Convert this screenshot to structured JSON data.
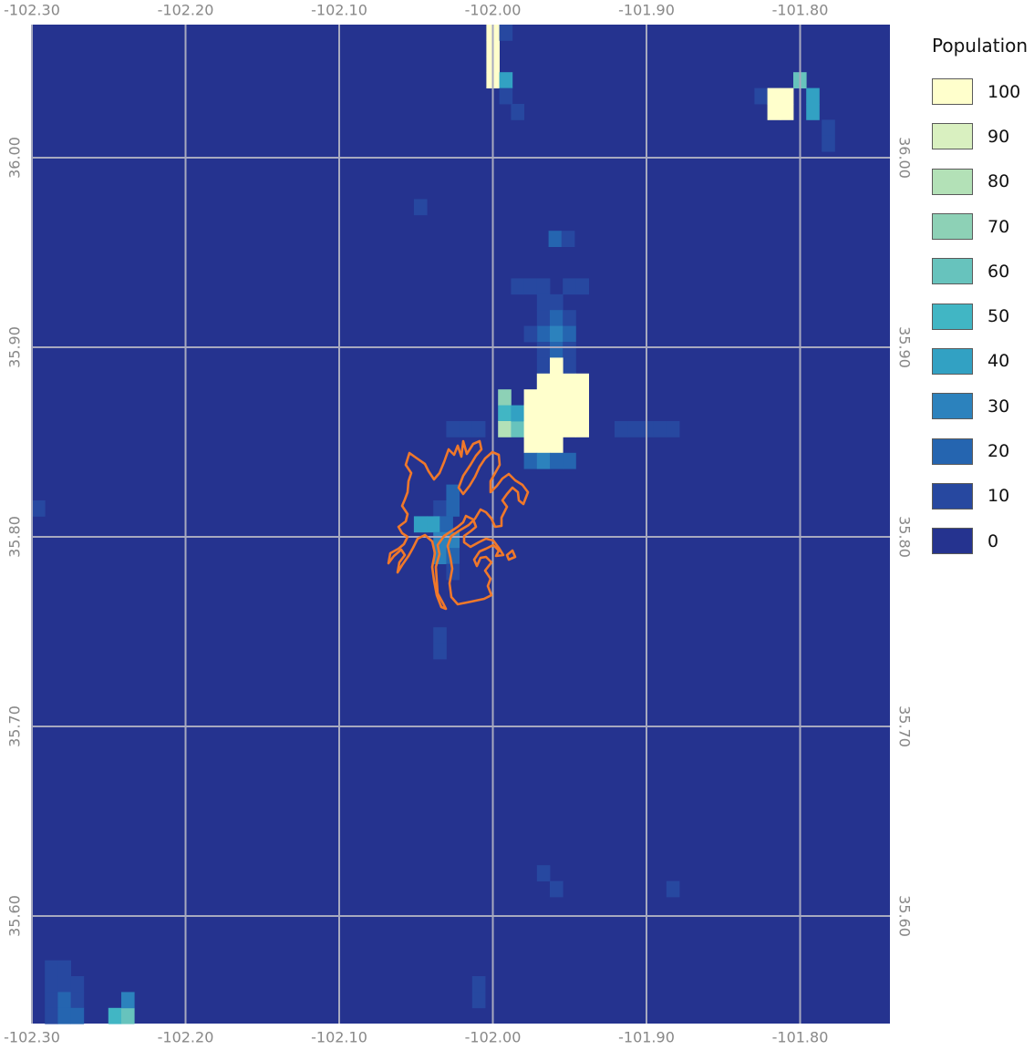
{
  "map": {
    "background_color": "#25338f",
    "grid_color": "#a7a9bf",
    "boundary_color": "#f0782a",
    "x_ticks": [
      "-102.30",
      "-102.20",
      "-102.10",
      "-102.00",
      "-101.90",
      "-101.80"
    ],
    "y_ticks": [
      "36.00",
      "35.90",
      "35.80",
      "35.70",
      "35.60"
    ]
  },
  "legend": {
    "title": "Population",
    "items": [
      {
        "label": "100",
        "color": "#ffffcc"
      },
      {
        "label": "90",
        "color": "#d9f0c0"
      },
      {
        "label": "80",
        "color": "#b3e1b7"
      },
      {
        "label": "70",
        "color": "#8dd1b6"
      },
      {
        "label": "60",
        "color": "#67c3bd"
      },
      {
        "label": "50",
        "color": "#41b6c4"
      },
      {
        "label": "40",
        "color": "#32a1c3"
      },
      {
        "label": "30",
        "color": "#2c82bd"
      },
      {
        "label": "20",
        "color": "#2565b0"
      },
      {
        "label": "10",
        "color": "#2748a0"
      },
      {
        "label": "0",
        "color": "#25338f"
      }
    ]
  }
}
